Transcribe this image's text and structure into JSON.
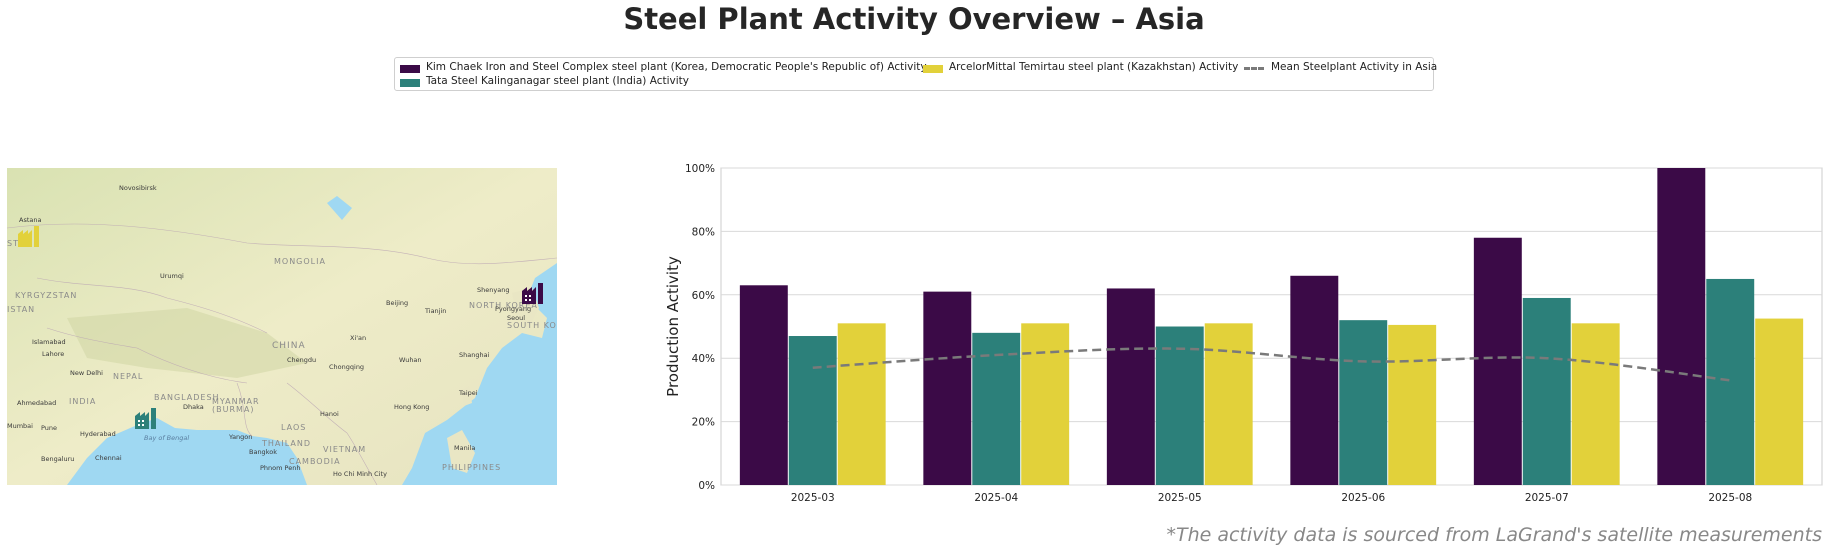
{
  "title": "Steel Plant Activity Overview – Asia",
  "source_note": "*The activity data is sourced from LaGrand's satellite measurements",
  "legend": [
    {
      "label": "Kim Chaek Iron and Steel Complex steel plant (Korea, Democratic People's Republic of) Activity",
      "color": "#3b0a47"
    },
    {
      "label": "Tata Steel Kalinganagar steel plant (India) Activity",
      "color": "#2c807a"
    },
    {
      "label": "ArcelorMittal Temirtau steel plant (Kazakhstan) Activity",
      "color": "#e2d13a"
    },
    {
      "label": "Mean Steelplant Activity in Asia",
      "color": "#7a7a7a"
    }
  ],
  "map": {
    "labels": [
      "Novosibirsk",
      "Astana",
      "Urumqi",
      "MONGOLIA",
      "Beijing",
      "Tianjin",
      "Shenyang",
      "NORTH KOREA",
      "Pyongyang",
      "Seoul",
      "SOUTH KOREA",
      "KYRGYZSTAN",
      "ISTAN",
      "Islamabad",
      "Lahore",
      "New Delhi",
      "NEPAL",
      "Ahmedabad",
      "INDIA",
      "Mumbai",
      "Pune",
      "Hyderabad",
      "Bengaluru",
      "Chennai",
      "Bay of Bengal",
      "BANGLADESH",
      "Dhaka",
      "MYANMAR",
      "(BURMA)",
      "CHINA",
      "Xi'an",
      "Chengdu",
      "Chongqing",
      "Wuhan",
      "Shanghai",
      "Taipei",
      "Hong Kong",
      "Hanoi",
      "LAOS",
      "THAILAND",
      "VIETNAM",
      "Yangon",
      "Bangkok",
      "CAMBODIA",
      "Phnom Penh",
      "Ho Chi Minh City",
      "Manila",
      "PHILIPPINES",
      "STAN"
    ],
    "markers": [
      {
        "plant": "ArcelorMittal Temirtau",
        "color": "#e2d13a",
        "icon": "factory-icon"
      },
      {
        "plant": "Kim Chaek",
        "color": "#3b0a47",
        "icon": "factory-icon"
      },
      {
        "plant": "Tata Steel Kalinganagar",
        "color": "#2c807a",
        "icon": "factory-icon"
      }
    ]
  },
  "chart_data": {
    "type": "bar",
    "categories": [
      "2025-03",
      "2025-04",
      "2025-05",
      "2025-06",
      "2025-07",
      "2025-08"
    ],
    "series": [
      {
        "name": "Kim Chaek Iron and Steel Complex steel plant (Korea, Democratic People's Republic of) Activity",
        "color": "#3b0a47",
        "values": [
          63,
          61,
          62,
          66,
          78,
          100
        ]
      },
      {
        "name": "Tata Steel Kalinganagar steel plant (India) Activity",
        "color": "#2c807a",
        "values": [
          47,
          48,
          50,
          52,
          59,
          65
        ]
      },
      {
        "name": "ArcelorMittal Temirtau steel plant (Kazakhstan) Activity",
        "color": "#e2d13a",
        "values": [
          51,
          51,
          51,
          50.5,
          51,
          52.5
        ]
      }
    ],
    "mean_line": {
      "name": "Mean Steelplant Activity in Asia",
      "color": "#7a7a7a",
      "style": "dashed",
      "values": [
        37,
        41,
        43,
        39,
        40,
        33
      ]
    },
    "ylabel": "Production Activity",
    "xlabel": "",
    "ylim": [
      0,
      100
    ],
    "yticks": [
      "0%",
      "20%",
      "40%",
      "60%",
      "80%",
      "100%"
    ],
    "ytick_values": [
      0,
      20,
      40,
      60,
      80,
      100
    ],
    "grid": true
  }
}
